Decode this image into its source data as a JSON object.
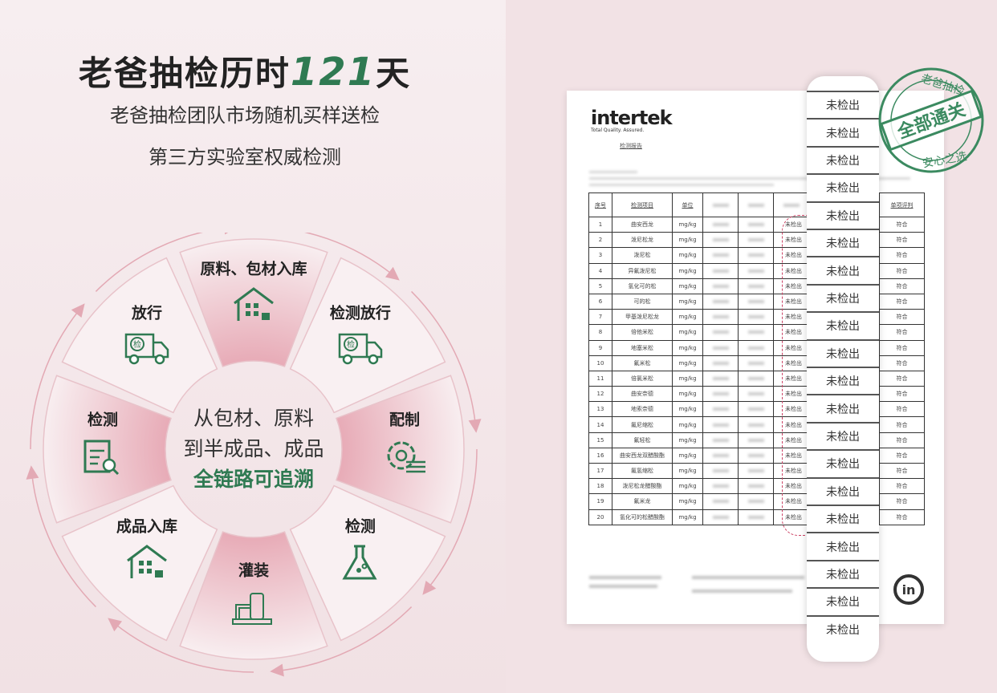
{
  "headline": {
    "prefix": "老爸抽检历时",
    "number": "121",
    "suffix": "天"
  },
  "subtitle1": "老爸抽检团队市场随机买样送检",
  "subtitle2": "第三方实验室权威检测",
  "wheel": {
    "center_line1": "从包材、原料",
    "center_line2": "到半成品、成品",
    "center_line3": "全链路可追溯",
    "steps": [
      {
        "label": "原料、包材入库",
        "icon": "warehouse-inbound-icon",
        "highlight": true
      },
      {
        "label": "检测放行",
        "icon": "inspection-truck-icon",
        "highlight": false
      },
      {
        "label": "配制",
        "icon": "gear-mixing-icon",
        "highlight": true
      },
      {
        "label": "检测",
        "icon": "flask-icon",
        "highlight": false
      },
      {
        "label": "灌装",
        "icon": "filling-machine-icon",
        "highlight": true
      },
      {
        "label": "成品入库",
        "icon": "warehouse-products-icon",
        "highlight": false
      },
      {
        "label": "检测",
        "icon": "clipboard-search-icon",
        "highlight": true
      },
      {
        "label": "放行",
        "icon": "inspection-truck-icon",
        "highlight": false
      }
    ],
    "truck_badge": "检"
  },
  "colors": {
    "green": "#2f7a52",
    "pink": "#e3a9b4",
    "bg": "#f3e6e8"
  },
  "report": {
    "logo": "intertek",
    "tagline": "Total Quality. Assured.",
    "title": "检测报告",
    "headers": [
      "序号",
      "检测项目",
      "单位",
      "单项评判"
    ],
    "unit": "mg/kg",
    "result": "未检出",
    "verdict": "符合",
    "items": [
      "曲安西龙",
      "泼尼松龙",
      "泼尼松",
      "异氟泼尼松",
      "氢化可的松",
      "可的松",
      "甲基泼尼松龙",
      "倍他米松",
      "地塞米松",
      "氟米松",
      "倍氯米松",
      "曲安奈德",
      "地索奈德",
      "氟尼缩松",
      "氟轻松",
      "曲安西龙双醋酸酯",
      "氟氢缩松",
      "泼尼松龙醋酸酯",
      "氟米龙",
      "氢化可的松醋酸酯"
    ]
  },
  "strip": {
    "cell": "未检出",
    "count": 20
  },
  "stamp": {
    "top": "老爸抽检",
    "middle": "全部通关",
    "bottom": "安心之选"
  }
}
